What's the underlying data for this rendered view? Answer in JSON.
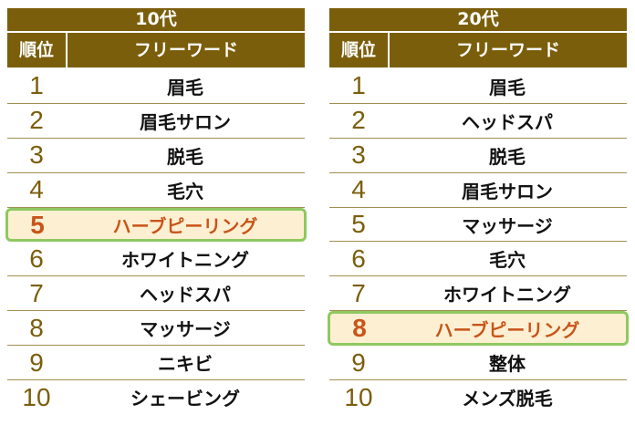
{
  "tables": [
    {
      "title": "10代",
      "rank_header": "順位",
      "word_header": "フリーワード",
      "highlight_index": 4,
      "rows": [
        {
          "rank": "1",
          "word": "眉毛"
        },
        {
          "rank": "2",
          "word": "眉毛サロン"
        },
        {
          "rank": "3",
          "word": "脱毛"
        },
        {
          "rank": "4",
          "word": "毛穴"
        },
        {
          "rank": "5",
          "word": "ハーブピーリング"
        },
        {
          "rank": "6",
          "word": "ホワイトニング"
        },
        {
          "rank": "7",
          "word": "ヘッドスパ"
        },
        {
          "rank": "8",
          "word": "マッサージ"
        },
        {
          "rank": "9",
          "word": "ニキビ"
        },
        {
          "rank": "10",
          "word": "シェービング"
        }
      ]
    },
    {
      "title": "20代",
      "rank_header": "順位",
      "word_header": "フリーワード",
      "highlight_index": 7,
      "rows": [
        {
          "rank": "1",
          "word": "眉毛"
        },
        {
          "rank": "2",
          "word": "ヘッドスパ"
        },
        {
          "rank": "3",
          "word": "脱毛"
        },
        {
          "rank": "4",
          "word": "眉毛サロン"
        },
        {
          "rank": "5",
          "word": "マッサージ"
        },
        {
          "rank": "6",
          "word": "毛穴"
        },
        {
          "rank": "7",
          "word": "ホワイトニング"
        },
        {
          "rank": "8",
          "word": "ハーブピーリング"
        },
        {
          "rank": "9",
          "word": "整体"
        },
        {
          "rank": "10",
          "word": "メンズ脱毛"
        }
      ]
    }
  ],
  "colors": {
    "header_bg": "#7b5e0b",
    "rank_text": "#7b5e0b",
    "highlight_text": "#c8541a",
    "highlight_bg": "#fdf0d2",
    "highlight_border": "#8fc860"
  }
}
